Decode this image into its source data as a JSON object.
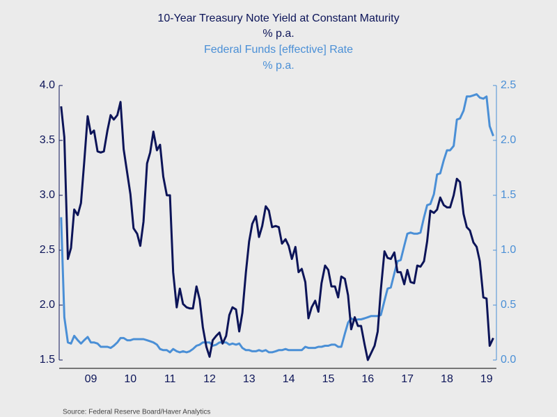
{
  "chart_data": {
    "type": "line",
    "series": [
      {
        "name": "10-Year Treasury Note Yield at Constant Maturity",
        "unit": "% p.a.",
        "color": "#0c1458",
        "axis": "y",
        "values": [
          3.81,
          3.53,
          2.42,
          2.52,
          2.87,
          2.82,
          2.93,
          3.29,
          3.72,
          3.56,
          3.59,
          3.4,
          3.39,
          3.4,
          3.59,
          3.73,
          3.69,
          3.73,
          3.85,
          3.42,
          3.2,
          3.01,
          2.7,
          2.65,
          2.54,
          2.76,
          3.29,
          3.39,
          3.58,
          3.41,
          3.46,
          3.17,
          3.0,
          3.0,
          2.3,
          1.98,
          2.15,
          2.01,
          1.98,
          1.97,
          1.97,
          2.17,
          2.05,
          1.8,
          1.62,
          1.53,
          1.68,
          1.72,
          1.75,
          1.65,
          1.72,
          1.91,
          1.98,
          1.96,
          1.76,
          1.93,
          2.3,
          2.58,
          2.74,
          2.81,
          2.62,
          2.72,
          2.9,
          2.86,
          2.71,
          2.72,
          2.71,
          2.56,
          2.6,
          2.54,
          2.42,
          2.53,
          2.3,
          2.33,
          2.21,
          1.88,
          1.98,
          2.04,
          1.94,
          2.2,
          2.36,
          2.32,
          2.17,
          2.17,
          2.07,
          2.26,
          2.24,
          2.09,
          1.78,
          1.89,
          1.81,
          1.81,
          1.64,
          1.5,
          1.56,
          1.63,
          1.76,
          2.14,
          2.49,
          2.43,
          2.42,
          2.48,
          2.3,
          2.3,
          2.19,
          2.32,
          2.21,
          2.2,
          2.36,
          2.35,
          2.4,
          2.58,
          2.86,
          2.84,
          2.87,
          2.98,
          2.91,
          2.89,
          2.89,
          3.0,
          3.15,
          3.12,
          2.83,
          2.71,
          2.68,
          2.57,
          2.53,
          2.4,
          2.07,
          2.06,
          1.63,
          1.7
        ]
      },
      {
        "name": "Federal Funds [effective] Rate",
        "unit": "% p.a.",
        "color": "#4a8fd6",
        "axis": "y2",
        "values": [
          1.3,
          0.39,
          0.16,
          0.15,
          0.22,
          0.18,
          0.15,
          0.18,
          0.21,
          0.16,
          0.16,
          0.15,
          0.12,
          0.12,
          0.12,
          0.11,
          0.13,
          0.16,
          0.2,
          0.2,
          0.18,
          0.18,
          0.19,
          0.19,
          0.19,
          0.19,
          0.18,
          0.17,
          0.16,
          0.14,
          0.1,
          0.09,
          0.09,
          0.07,
          0.1,
          0.08,
          0.07,
          0.08,
          0.07,
          0.08,
          0.1,
          0.13,
          0.14,
          0.16,
          0.16,
          0.16,
          0.13,
          0.14,
          0.16,
          0.16,
          0.16,
          0.14,
          0.15,
          0.14,
          0.15,
          0.11,
          0.09,
          0.09,
          0.08,
          0.08,
          0.09,
          0.08,
          0.09,
          0.07,
          0.07,
          0.08,
          0.09,
          0.09,
          0.1,
          0.09,
          0.09,
          0.09,
          0.09,
          0.09,
          0.12,
          0.11,
          0.11,
          0.11,
          0.12,
          0.12,
          0.13,
          0.13,
          0.14,
          0.14,
          0.12,
          0.12,
          0.24,
          0.34,
          0.38,
          0.36,
          0.37,
          0.37,
          0.38,
          0.39,
          0.4,
          0.4,
          0.4,
          0.41,
          0.54,
          0.65,
          0.66,
          0.79,
          0.9,
          0.91,
          1.04,
          1.15,
          1.16,
          1.15,
          1.15,
          1.16,
          1.3,
          1.41,
          1.42,
          1.51,
          1.69,
          1.7,
          1.82,
          1.91,
          1.91,
          1.95,
          2.19,
          2.2,
          2.27,
          2.4,
          2.4,
          2.41,
          2.42,
          2.39,
          2.38,
          2.4,
          2.13,
          2.04
        ]
      }
    ],
    "x": [
      2008.75,
      2008.83,
      2008.92,
      2009,
      2009.08,
      2009.17,
      2009.25,
      2009.33,
      2009.42,
      2009.5,
      2009.58,
      2009.67,
      2009.75,
      2009.83,
      2009.92,
      2010,
      2010.08,
      2010.17,
      2010.25,
      2010.33,
      2010.42,
      2010.5,
      2010.58,
      2010.67,
      2010.75,
      2010.83,
      2010.92,
      2011,
      2011.08,
      2011.17,
      2011.25,
      2011.33,
      2011.42,
      2011.5,
      2011.58,
      2011.67,
      2011.75,
      2011.83,
      2011.92,
      2012,
      2012.08,
      2012.17,
      2012.25,
      2012.33,
      2012.42,
      2012.5,
      2012.58,
      2012.67,
      2012.75,
      2012.83,
      2012.92,
      2013,
      2013.08,
      2013.17,
      2013.25,
      2013.33,
      2013.42,
      2013.5,
      2013.58,
      2013.67,
      2013.75,
      2013.83,
      2013.92,
      2014,
      2014.08,
      2014.17,
      2014.25,
      2014.33,
      2014.42,
      2014.5,
      2014.58,
      2014.67,
      2014.75,
      2014.83,
      2014.92,
      2015,
      2015.08,
      2015.17,
      2015.25,
      2015.33,
      2015.42,
      2015.5,
      2015.58,
      2015.67,
      2015.75,
      2015.83,
      2015.92,
      2016,
      2016.08,
      2016.17,
      2016.25,
      2016.33,
      2016.42,
      2016.5,
      2016.58,
      2016.67,
      2016.75,
      2016.83,
      2016.92,
      2017,
      2017.08,
      2017.17,
      2017.25,
      2017.33,
      2017.42,
      2017.5,
      2017.58,
      2017.67,
      2017.75,
      2017.83,
      2017.92,
      2018,
      2018.08,
      2018.17,
      2018.25,
      2018.33,
      2018.42,
      2018.5,
      2018.58,
      2018.67,
      2018.75,
      2018.83,
      2018.92,
      2019,
      2019.08,
      2019.17,
      2019.25,
      2019.33,
      2019.42,
      2019.5,
      2019.58,
      2019.67
    ],
    "xlim": [
      2008.7,
      2019.75
    ],
    "xticks": [
      {
        "value": 2009.5,
        "label": "09"
      },
      {
        "value": 2010.5,
        "label": "10"
      },
      {
        "value": 2011.5,
        "label": "11"
      },
      {
        "value": 2012.5,
        "label": "12"
      },
      {
        "value": 2013.5,
        "label": "13"
      },
      {
        "value": 2014.5,
        "label": "14"
      },
      {
        "value": 2015.5,
        "label": "15"
      },
      {
        "value": 2016.5,
        "label": "16"
      },
      {
        "value": 2017.5,
        "label": "17"
      },
      {
        "value": 2018.5,
        "label": "18"
      },
      {
        "value": 2019.5,
        "label": "19"
      }
    ],
    "ylim": [
      1.5,
      4.0
    ],
    "yticks": [
      1.5,
      {
        "value": 2,
        "label": "2.0"
      },
      2.5,
      {
        "value": 3,
        "label": "3.0"
      },
      3.5,
      {
        "value": 4,
        "label": "4.0"
      }
    ],
    "y2lim": [
      0,
      2.5
    ],
    "y2ticks": [
      {
        "value": 0,
        "label": "0.0"
      },
      0.5,
      {
        "value": 1,
        "label": "1.0"
      },
      1.5,
      {
        "value": 2,
        "label": "2.0"
      },
      2.5
    ],
    "source": "Source:  Federal Reserve Board/Haver Analytics"
  }
}
